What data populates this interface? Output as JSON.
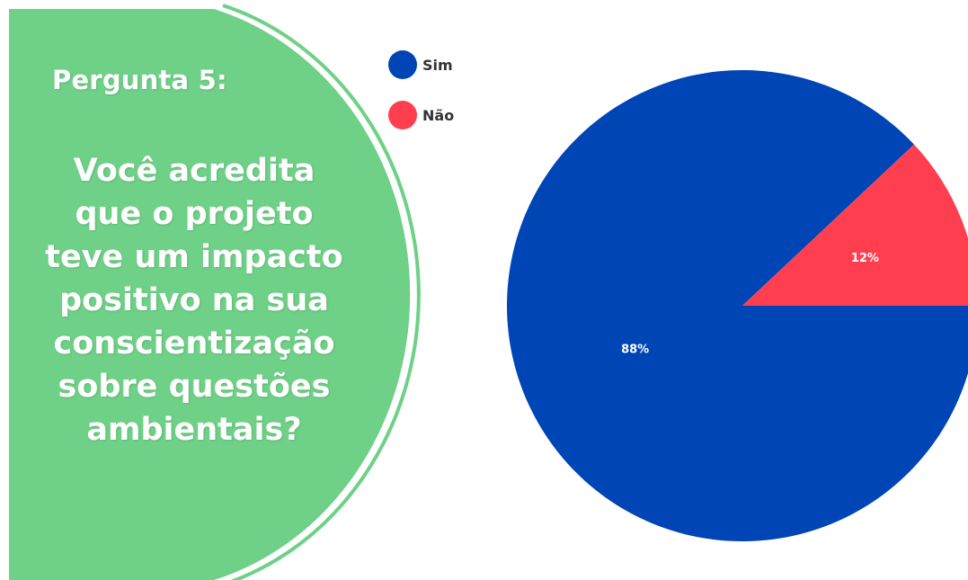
{
  "question": {
    "label": "Pergunta 5:",
    "lines": [
      "Você acredita",
      "que o projeto",
      "teve um impacto",
      "positivo na sua",
      "conscientização",
      "sobre questões",
      "ambientais?"
    ]
  },
  "colors": {
    "panel": "#6fd087",
    "panel_ring": "#6fd087",
    "sim": "#0045b5",
    "nao": "#ff3f4f"
  },
  "chart_data": {
    "type": "pie",
    "categories": [
      "Sim",
      "Não"
    ],
    "values": [
      88,
      12
    ],
    "data_labels": [
      "88%",
      "12%"
    ],
    "title": "",
    "legend": "top-left"
  }
}
